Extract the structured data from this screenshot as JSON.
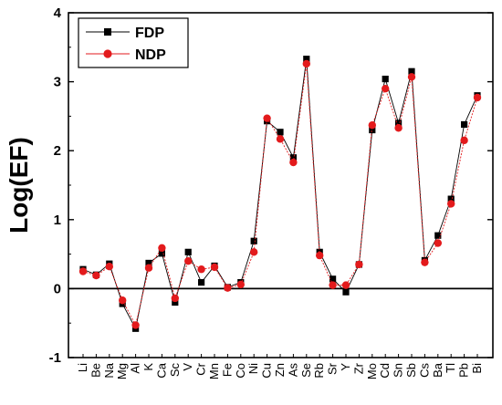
{
  "chart_data": {
    "type": "line",
    "title": "",
    "xlabel": "",
    "ylabel": "Log(EF)",
    "ylim": [
      -1,
      4
    ],
    "yticks": [
      "-1",
      "0",
      "1",
      "2",
      "3",
      "4"
    ],
    "categories": [
      "Li",
      "Be",
      "Na",
      "Mg",
      "Al",
      "K",
      "Ca",
      "Sc",
      "V",
      "Cr",
      "Mn",
      "Fe",
      "Co",
      "Ni",
      "Cu",
      "Zn",
      "As",
      "Se",
      "Rb",
      "Sr",
      "Y",
      "Zr",
      "Mo",
      "Cd",
      "Sn",
      "Sb",
      "Cs",
      "Ba",
      "Tl",
      "Pb",
      "Bi"
    ],
    "series": [
      {
        "name": "FDP",
        "color": "#000000",
        "marker": "square",
        "values": [
          0.28,
          0.2,
          0.36,
          -0.22,
          -0.58,
          0.37,
          0.51,
          -0.2,
          0.53,
          0.09,
          0.33,
          0.02,
          0.09,
          0.69,
          2.43,
          2.27,
          1.9,
          3.33,
          0.53,
          0.14,
          -0.05,
          0.35,
          2.3,
          3.04,
          2.4,
          3.15,
          0.41,
          0.77,
          1.3,
          2.38,
          2.8
        ]
      },
      {
        "name": "NDP",
        "color": "#e31a1c",
        "marker": "circle",
        "values": [
          0.25,
          0.19,
          0.32,
          -0.17,
          -0.53,
          0.3,
          0.59,
          -0.14,
          0.4,
          0.28,
          0.31,
          0.01,
          0.06,
          0.53,
          2.47,
          2.17,
          1.83,
          3.26,
          0.48,
          0.05,
          0.05,
          0.35,
          2.37,
          2.9,
          2.33,
          3.07,
          0.38,
          0.66,
          1.23,
          2.15,
          2.77
        ]
      }
    ],
    "reference_line": {
      "y": 0,
      "color": "#000000"
    },
    "legend_position": "top-left",
    "grid": false
  }
}
